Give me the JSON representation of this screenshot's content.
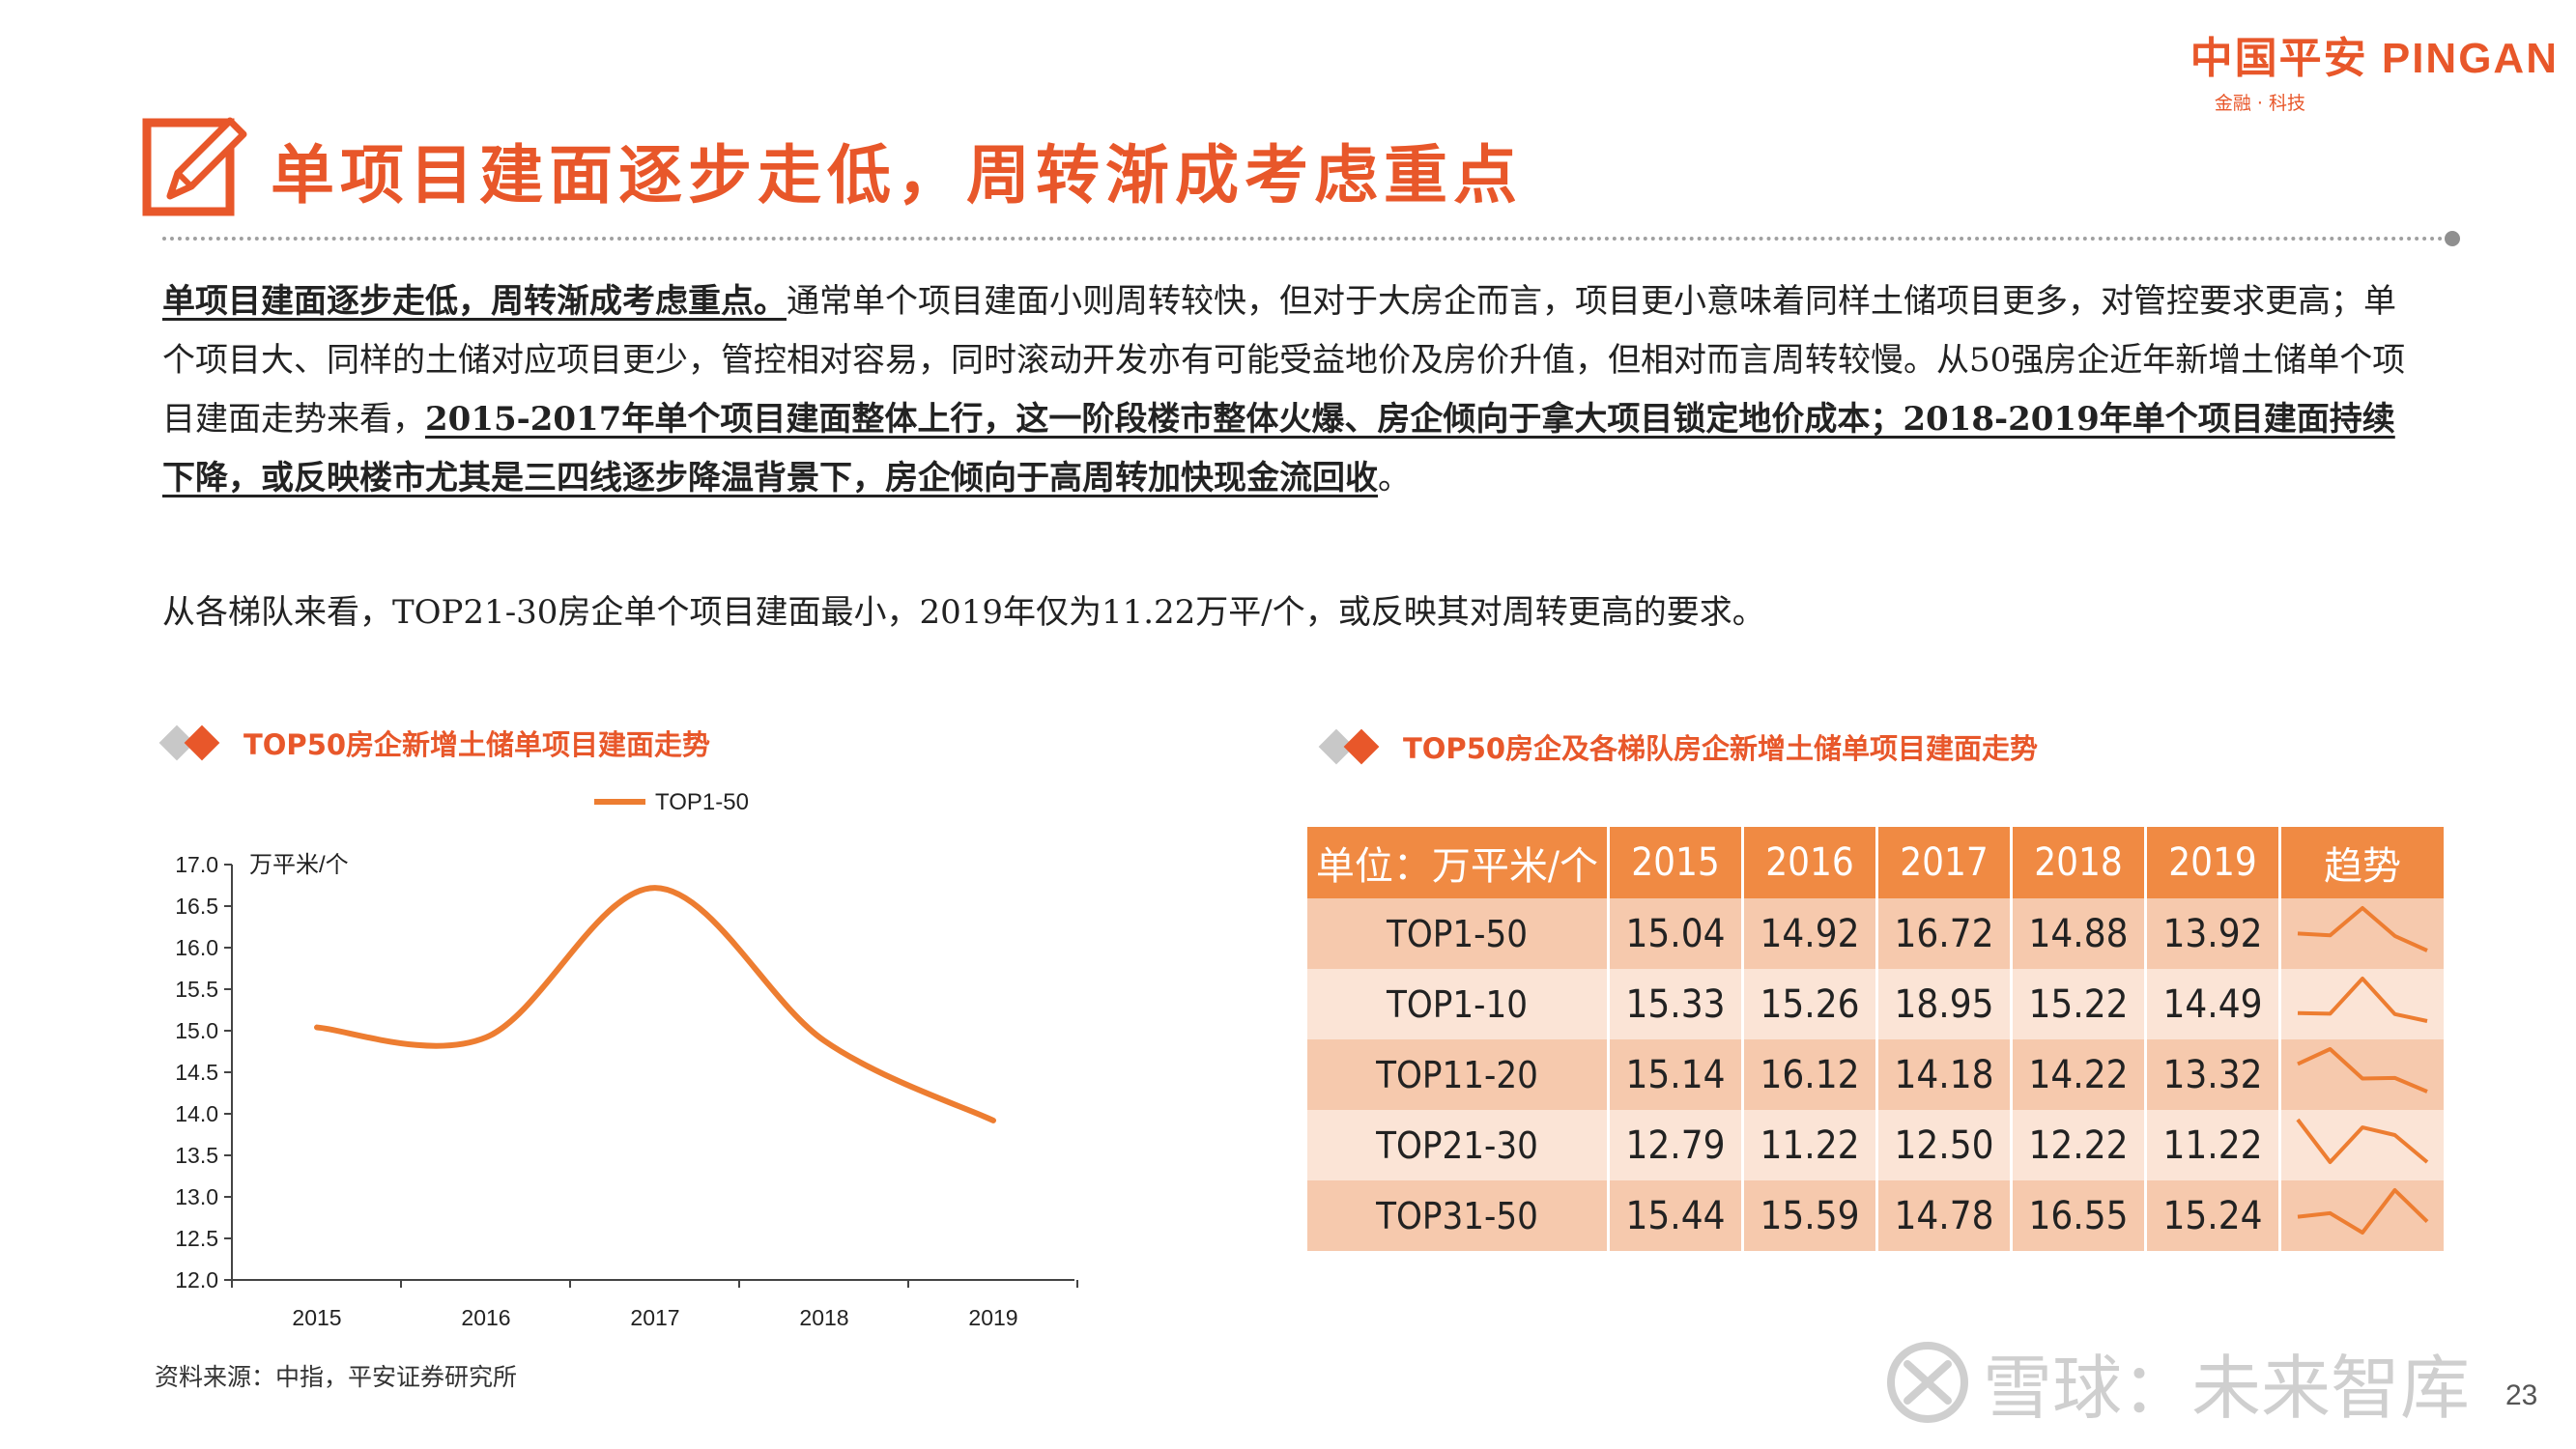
{
  "logo": {
    "main": "中国平安 PINGAN",
    "sub": "金融 · 科技"
  },
  "title": "单项目建面逐步走低，周转渐成考虑重点",
  "para1": {
    "lead": "单项目建面逐步走低，周转渐成考虑重点。",
    "body": "通常单个项目建面小则周转较快，但对于大房企而言，项目更小意味着同样土储项目更多，对管控要求更高；单个项目大、同样的土储对应项目更少，管控相对容易，同时滚动开发亦有可能受益地价及房价升值，但相对而言周转较慢。从50强房企近年新增土储单个项目建面走势来看，",
    "highlight": "2015-2017年单个项目建面整体上行，这一阶段楼市整体火爆、房企倾向于拿大项目锁定地价成本；2018-2019年单个项目建面持续下降，或反映楼市尤其是三四线逐步降温背景下，房企倾向于高周转加快现金流回收",
    "tail": "。"
  },
  "para2": "从各梯队来看，TOP21-30房企单个项目建面最小，2019年仅为11.22万平/个，或反映其对周转更高的要求。",
  "left_section": {
    "title": "TOP50房企新增土储单项目建面走势"
  },
  "right_section": {
    "title": "TOP50房企及各梯队房企新增土储单项目建面走势"
  },
  "source": "资料来源：中指，平安证券研究所",
  "watermark": "雪球：未来智库",
  "page_number": "23",
  "chart_data": {
    "type": "line",
    "x": [
      "2015",
      "2016",
      "2017",
      "2018",
      "2019"
    ],
    "series": [
      {
        "name": "TOP1-50",
        "values": [
          15.04,
          14.92,
          16.72,
          14.88,
          13.92
        ],
        "color": "#ed7d31"
      }
    ],
    "ylabel": "万平米/个",
    "ylim": [
      12.0,
      17.0
    ],
    "yticks": [
      "12.0",
      "12.5",
      "13.0",
      "13.5",
      "14.0",
      "14.5",
      "15.0",
      "15.5",
      "16.0",
      "16.5",
      "17.0"
    ],
    "legend": "top-center",
    "grid": false
  },
  "table": {
    "header_label": "单位：万平米/个",
    "years": [
      "2015",
      "2016",
      "2017",
      "2018",
      "2019"
    ],
    "trend_label": "趋势",
    "trend_color": "#ed7d31",
    "rows": [
      {
        "label": "TOP1-50",
        "values": [
          "15.04",
          "14.92",
          "16.72",
          "14.88",
          "13.92"
        ]
      },
      {
        "label": "TOP1-10",
        "values": [
          "15.33",
          "15.26",
          "18.95",
          "15.22",
          "14.49"
        ]
      },
      {
        "label": "TOP11-20",
        "values": [
          "15.14",
          "16.12",
          "14.18",
          "14.22",
          "13.32"
        ]
      },
      {
        "label": "TOP21-30",
        "values": [
          "12.79",
          "11.22",
          "12.50",
          "12.22",
          "11.22"
        ]
      },
      {
        "label": "TOP31-50",
        "values": [
          "15.44",
          "15.59",
          "14.78",
          "16.55",
          "15.24"
        ]
      }
    ]
  }
}
